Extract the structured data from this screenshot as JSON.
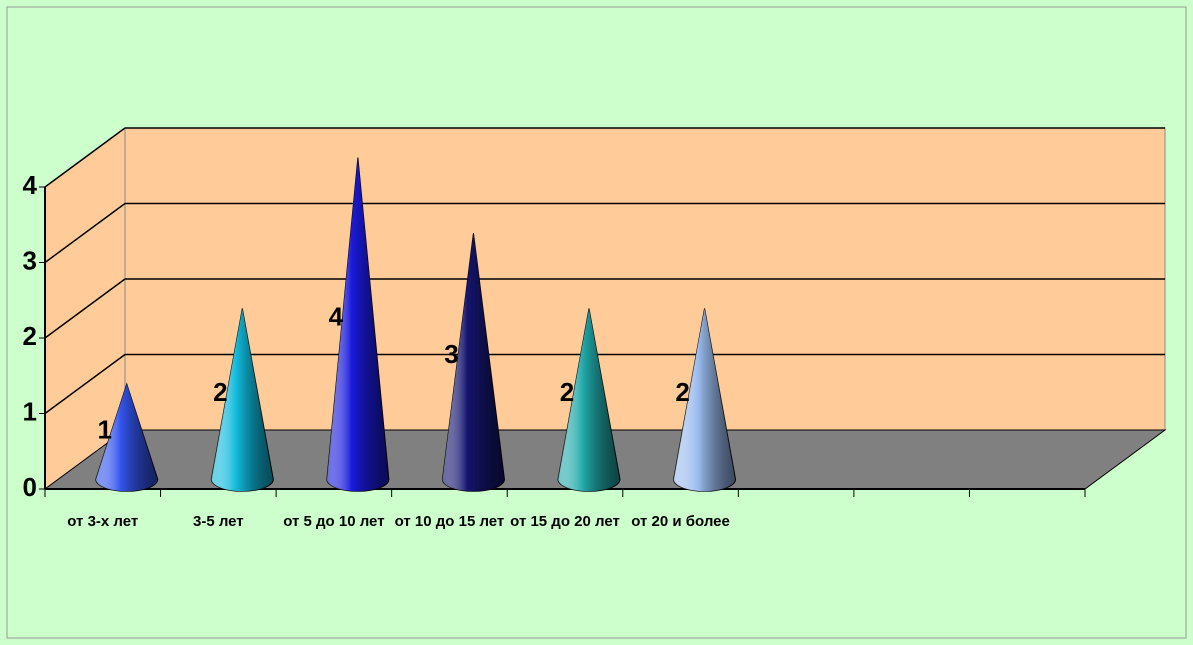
{
  "chart_data": {
    "type": "cone",
    "categories": [
      "от 3-х лет",
      "3-5 лет",
      "от 5 до 10 лет",
      "от 10 до 15 лет",
      "от 15 до 20 лет",
      "от 20 и более",
      null,
      null,
      null
    ],
    "values": [
      1,
      2,
      4,
      3,
      2,
      2,
      null,
      null,
      null
    ],
    "colors": [
      "#3355ee",
      "#11bbdd",
      "#1a1add",
      "#151570",
      "#22aaaa",
      "#99bbee"
    ],
    "ylim": [
      0,
      4
    ],
    "yticks": [
      0,
      1,
      2,
      3,
      4
    ],
    "grid": true
  }
}
